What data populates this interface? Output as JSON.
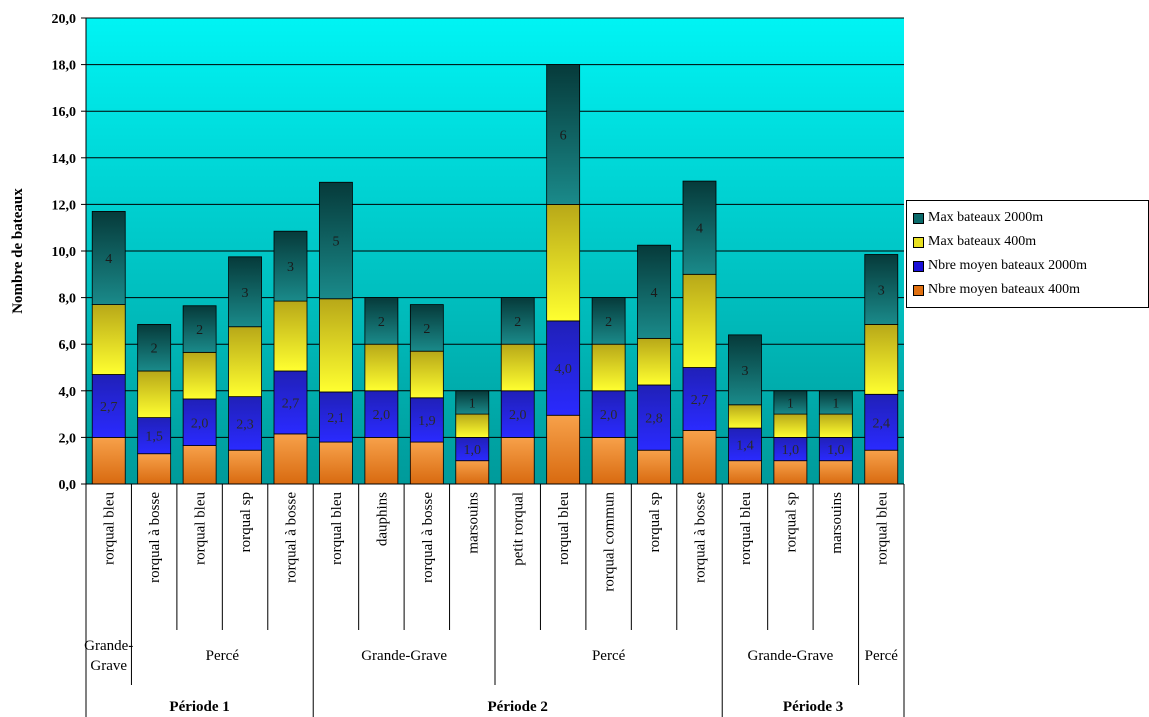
{
  "chart_data": {
    "type": "bar",
    "stacked": true,
    "ylabel": "Nombre de bateaux",
    "ylim": [
      0,
      20
    ],
    "ytick_step": 2,
    "ytick_labels": [
      "0,0",
      "2,0",
      "4,0",
      "6,0",
      "8,0",
      "10,0",
      "12,0",
      "14,0",
      "16,0",
      "18,0",
      "20,0"
    ],
    "grid": true,
    "legend_position": "right",
    "categories": [
      "rorqual bleu",
      "rorqual à bosse",
      "rorqual bleu",
      "rorqual sp",
      "rorqual à bosse",
      "rorqual bleu",
      "dauphins",
      "rorqual à bosse",
      "marsouins",
      "petit rorqual",
      "rorqual bleu",
      "rorqual commun",
      "rorqual sp",
      "rorqual à bosse",
      "rorqual bleu",
      "rorqual sp",
      "marsouins",
      "rorqual bleu"
    ],
    "location_groups": [
      {
        "label_lines": [
          "Grande-",
          "Grave"
        ],
        "count": 1
      },
      {
        "label_lines": [
          "Percé"
        ],
        "count": 4
      },
      {
        "label_lines": [
          "Grande-Grave"
        ],
        "count": 4
      },
      {
        "label_lines": [
          "Percé"
        ],
        "count": 5
      },
      {
        "label_lines": [
          "Grande-Grave"
        ],
        "count": 3
      },
      {
        "label_lines": [
          "Percé"
        ],
        "count": 1
      }
    ],
    "period_groups": [
      {
        "label": "Période 1",
        "count": 5
      },
      {
        "label": "Période 2",
        "count": 9
      },
      {
        "label": "Période 3",
        "count": 4
      }
    ],
    "series": [
      {
        "name": "Nbre moyen bateaux 400m",
        "color": "#e07010",
        "values": [
          2.0,
          1.3,
          1.65,
          1.45,
          2.15,
          1.8,
          2.0,
          1.8,
          1.0,
          2.0,
          2.95,
          2.0,
          1.45,
          2.3,
          1.0,
          1.0,
          1.0,
          1.45
        ]
      },
      {
        "name": "Nbre moyen bateaux 2000m",
        "color": "#1a10d8",
        "values": [
          2.7,
          1.55,
          2.0,
          2.3,
          2.7,
          2.15,
          2.0,
          1.9,
          1.0,
          2.0,
          4.05,
          2.0,
          2.8,
          2.7,
          1.4,
          1.0,
          1.0,
          2.4
        ]
      },
      {
        "name": "Max bateaux 400m",
        "color": "#e8e020",
        "values": [
          3.0,
          2.0,
          2.0,
          3.0,
          3.0,
          4.0,
          2.0,
          2.0,
          1.0,
          2.0,
          5.0,
          2.0,
          2.0,
          4.0,
          1.0,
          1.0,
          1.0,
          3.0
        ]
      },
      {
        "name": "Max bateaux 2000m",
        "color": "#0a6a6a",
        "values": [
          4.0,
          2.0,
          2.0,
          3.0,
          3.0,
          5.0,
          2.0,
          2.0,
          1.0,
          2.0,
          6.0,
          2.0,
          4.0,
          4.0,
          3.0,
          1.0,
          1.0,
          3.0
        ]
      }
    ],
    "data_labels": [
      {
        "series": "Nbre moyen bateaux 2000m",
        "labels": [
          "2,7",
          "1,5",
          "2,0",
          "2,3",
          "2,7",
          "2,1",
          "2,0",
          "1,9",
          "1,0",
          "2,0",
          "4,0",
          "2,0",
          "2,8",
          "2,7",
          "1,4",
          "1,0",
          "1,0",
          "2,4"
        ]
      },
      {
        "series": "Max bateaux 2000m",
        "labels": [
          "4",
          "2",
          "2",
          "3",
          "3",
          "5",
          "2",
          "2",
          "1",
          "2",
          "6",
          "2",
          "4",
          "4",
          "3",
          "1",
          "1",
          "3"
        ]
      }
    ]
  },
  "legend_order": [
    3,
    2,
    1,
    0
  ]
}
